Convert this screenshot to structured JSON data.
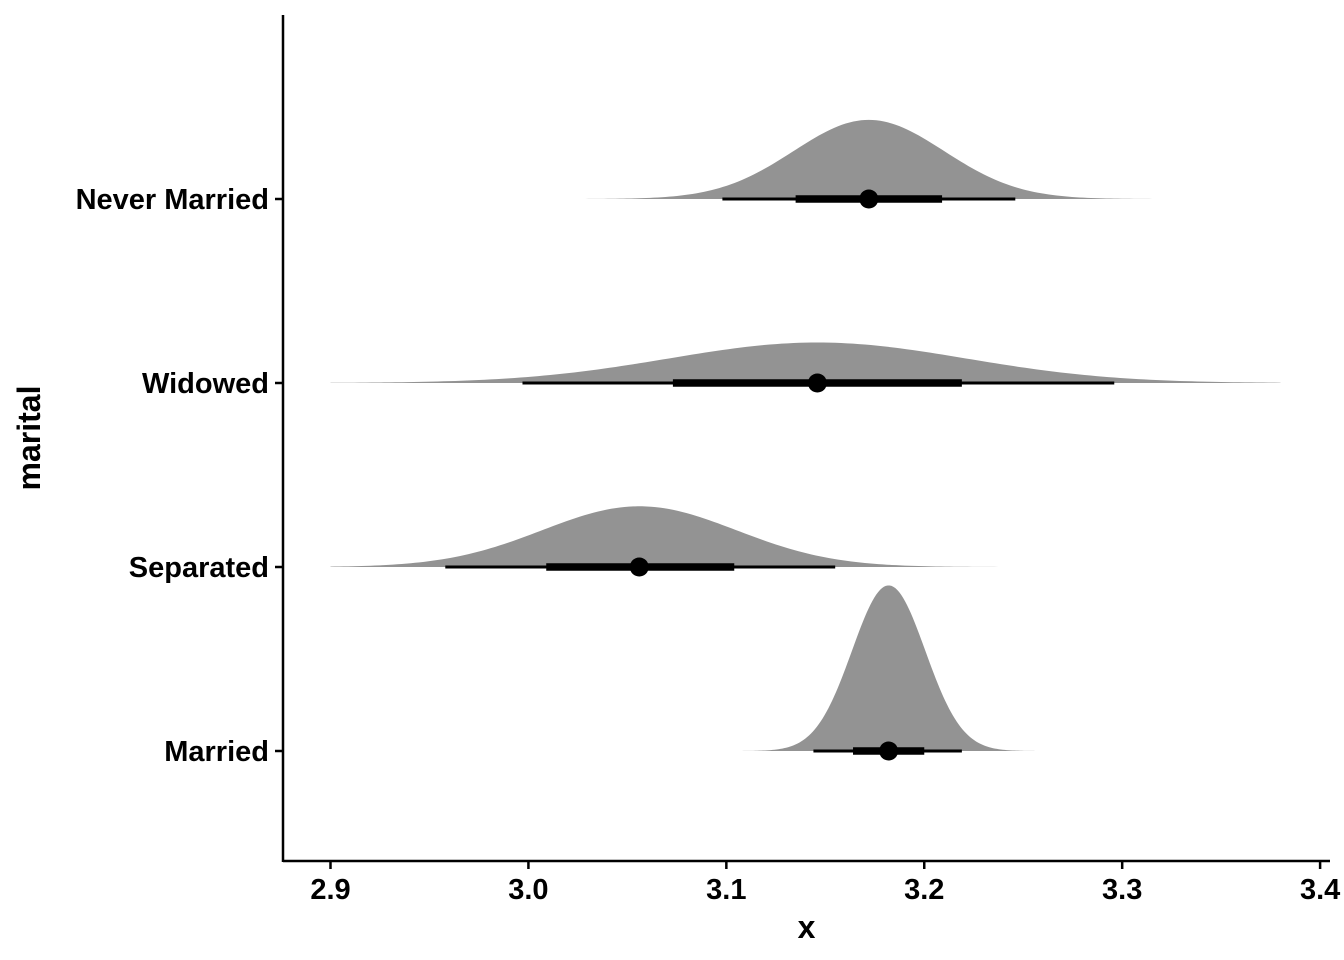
{
  "chart_data": {
    "type": "halfeye",
    "xlabel": "x",
    "ylabel": "marital",
    "xlim": [
      2.876,
      3.405
    ],
    "x_ticks": [
      "2.9",
      "3.0",
      "3.1",
      "3.2",
      "3.3",
      "3.4"
    ],
    "x_tick_values": [
      2.9,
      3.0,
      3.1,
      3.2,
      3.3,
      3.4
    ],
    "categories": [
      "Married",
      "Separated",
      "Widowed",
      "Never Married"
    ],
    "grid": false,
    "legend": "none",
    "fill_color": "#939393",
    "interval_color": "#000000",
    "series": [
      {
        "category": "Married",
        "median": 3.182,
        "sd": 0.0185,
        "interval_66": [
          3.164,
          3.2
        ],
        "interval_95": [
          3.144,
          3.219
        ],
        "density_range": [
          3.105,
          3.26
        ],
        "relative_height": 0.9
      },
      {
        "category": "Separated",
        "median": 3.056,
        "sd": 0.049,
        "interval_66": [
          3.009,
          3.104
        ],
        "interval_95": [
          2.958,
          3.155
        ],
        "density_range": [
          2.9,
          3.26
        ],
        "relative_height": 0.33
      },
      {
        "category": "Widowed",
        "median": 3.146,
        "sd": 0.075,
        "interval_66": [
          3.073,
          3.219
        ],
        "interval_95": [
          2.997,
          3.296
        ],
        "density_range": [
          2.9,
          3.38
        ],
        "relative_height": 0.22
      },
      {
        "category": "Never Married",
        "median": 3.172,
        "sd": 0.038,
        "interval_66": [
          3.135,
          3.209
        ],
        "interval_95": [
          3.098,
          3.246
        ],
        "density_range": [
          3.015,
          3.325
        ],
        "relative_height": 0.43
      }
    ]
  }
}
